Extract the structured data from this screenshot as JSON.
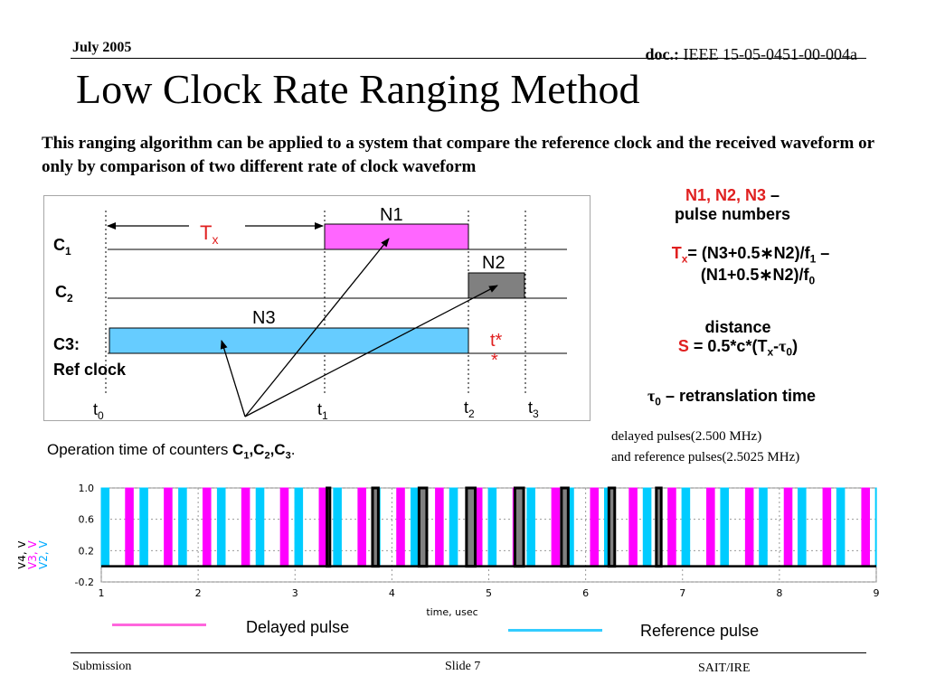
{
  "header": {
    "date": "July 2005",
    "doc_label": "doc.:",
    "doc_number": "IEEE 15-05-0451-00-004a"
  },
  "title": "Low Clock Rate Ranging Method",
  "intro": "This ranging algorithm can be applied to a system that compare the reference clock and the received waveform or only by comparison of two different rate of clock waveform",
  "diagram": {
    "c1": "C",
    "c1_sub": "1",
    "c2": "C",
    "c2_sub": "2",
    "c3": "C3:",
    "c3b": "Ref clock",
    "n1": "N1",
    "n2": "N2",
    "n3": "N3",
    "tx": "T",
    "tx_sub": "x",
    "tstar": "t*",
    "tstar2": "*",
    "t0": "t",
    "t0_sub": "0",
    "t1": "t",
    "t1_sub": "1",
    "t2": "t",
    "t2_sub": "2",
    "t3": "t",
    "t3_sub": "3",
    "colors": {
      "c1_fill": "#ff66ff",
      "c2_fill": "#808080",
      "c3_fill": "#66ccff"
    }
  },
  "side": {
    "pulse_names": "N1, N2, N3",
    "pulse_dash": " –",
    "pulse_numbers": "pulse numbers",
    "formula_t": "T",
    "formula_x": "x",
    "formula_a": "= (N3+0.5",
    "formula_star1": "∗",
    "formula_b": "N2)/f",
    "formula_sub1": "1",
    "formula_c": " –",
    "formula_d": "(N1+0.5",
    "formula_star2": "∗",
    "formula_e": "N2)/f",
    "formula_sub0": "0",
    "distance_label": "distance",
    "distance_s": "S",
    "distance_eq": " = 0.5*c*(T",
    "distance_x": "x",
    "distance_minus": "-",
    "tau": "τ",
    "distance_zero": "0",
    "distance_close": ")",
    "retrans_tau": "τ",
    "retrans_zero": "0",
    "retrans_text": " – retranslation time"
  },
  "operation": {
    "text": "Operation time of counters ",
    "c": "C",
    "s1": "1",
    "comma1": ",C",
    "s2": "2",
    "comma2": ",C",
    "s3": "3",
    "dot": "."
  },
  "chart_caption": {
    "line1": "delayed pulses(2.500 MHz)",
    "line2": "and reference pulses(2.5025 MHz)"
  },
  "chart_data": {
    "type": "line",
    "xlabel": "time, usec",
    "ylabel_series": [
      "V4, V",
      "V3, V",
      "V2, V"
    ],
    "ylabel_colors": [
      "#000000",
      "#ff00ff",
      "#00aaff"
    ],
    "xlim": [
      1,
      9
    ],
    "ylim": [
      -0.2,
      1.0
    ],
    "xticks": [
      "1",
      "2",
      "3",
      "4",
      "5",
      "6",
      "7",
      "8",
      "9"
    ],
    "yticks": [
      "1.0",
      "0.6",
      "0.2",
      "-0.2"
    ],
    "ytick_values": [
      1.0,
      0.6,
      0.2,
      -0.2
    ],
    "series": [
      {
        "name": "V2",
        "color": "#00ccff",
        "pulse_period": 0.3996,
        "pulse_width": 0.08,
        "pulse_start": 1.0,
        "high": 1.0,
        "low": 0.0
      },
      {
        "name": "V3",
        "color": "#ff00ff",
        "pulse_period": 0.4,
        "pulse_width": 0.08,
        "pulse_start": 1.25,
        "high": 1.0,
        "low": 0.0
      },
      {
        "name": "V4",
        "color": "#000000",
        "pulses": [
          [
            3.33,
            3.36
          ],
          [
            3.8,
            3.86
          ],
          [
            4.28,
            4.36
          ],
          [
            4.77,
            4.86
          ],
          [
            5.27,
            5.36
          ],
          [
            5.75,
            5.82
          ],
          [
            6.24,
            6.3
          ],
          [
            6.73,
            6.78
          ]
        ],
        "fill": "#808080",
        "high": 1.0,
        "low": 0.0
      }
    ]
  },
  "legend": {
    "delayed": "Delayed pulse",
    "delayed_color": "#ff66dd",
    "reference": "Reference pulse",
    "reference_color": "#33ccff"
  },
  "footer": {
    "left": "Submission",
    "center": "Slide 7",
    "right": "SAIT/IRE"
  }
}
